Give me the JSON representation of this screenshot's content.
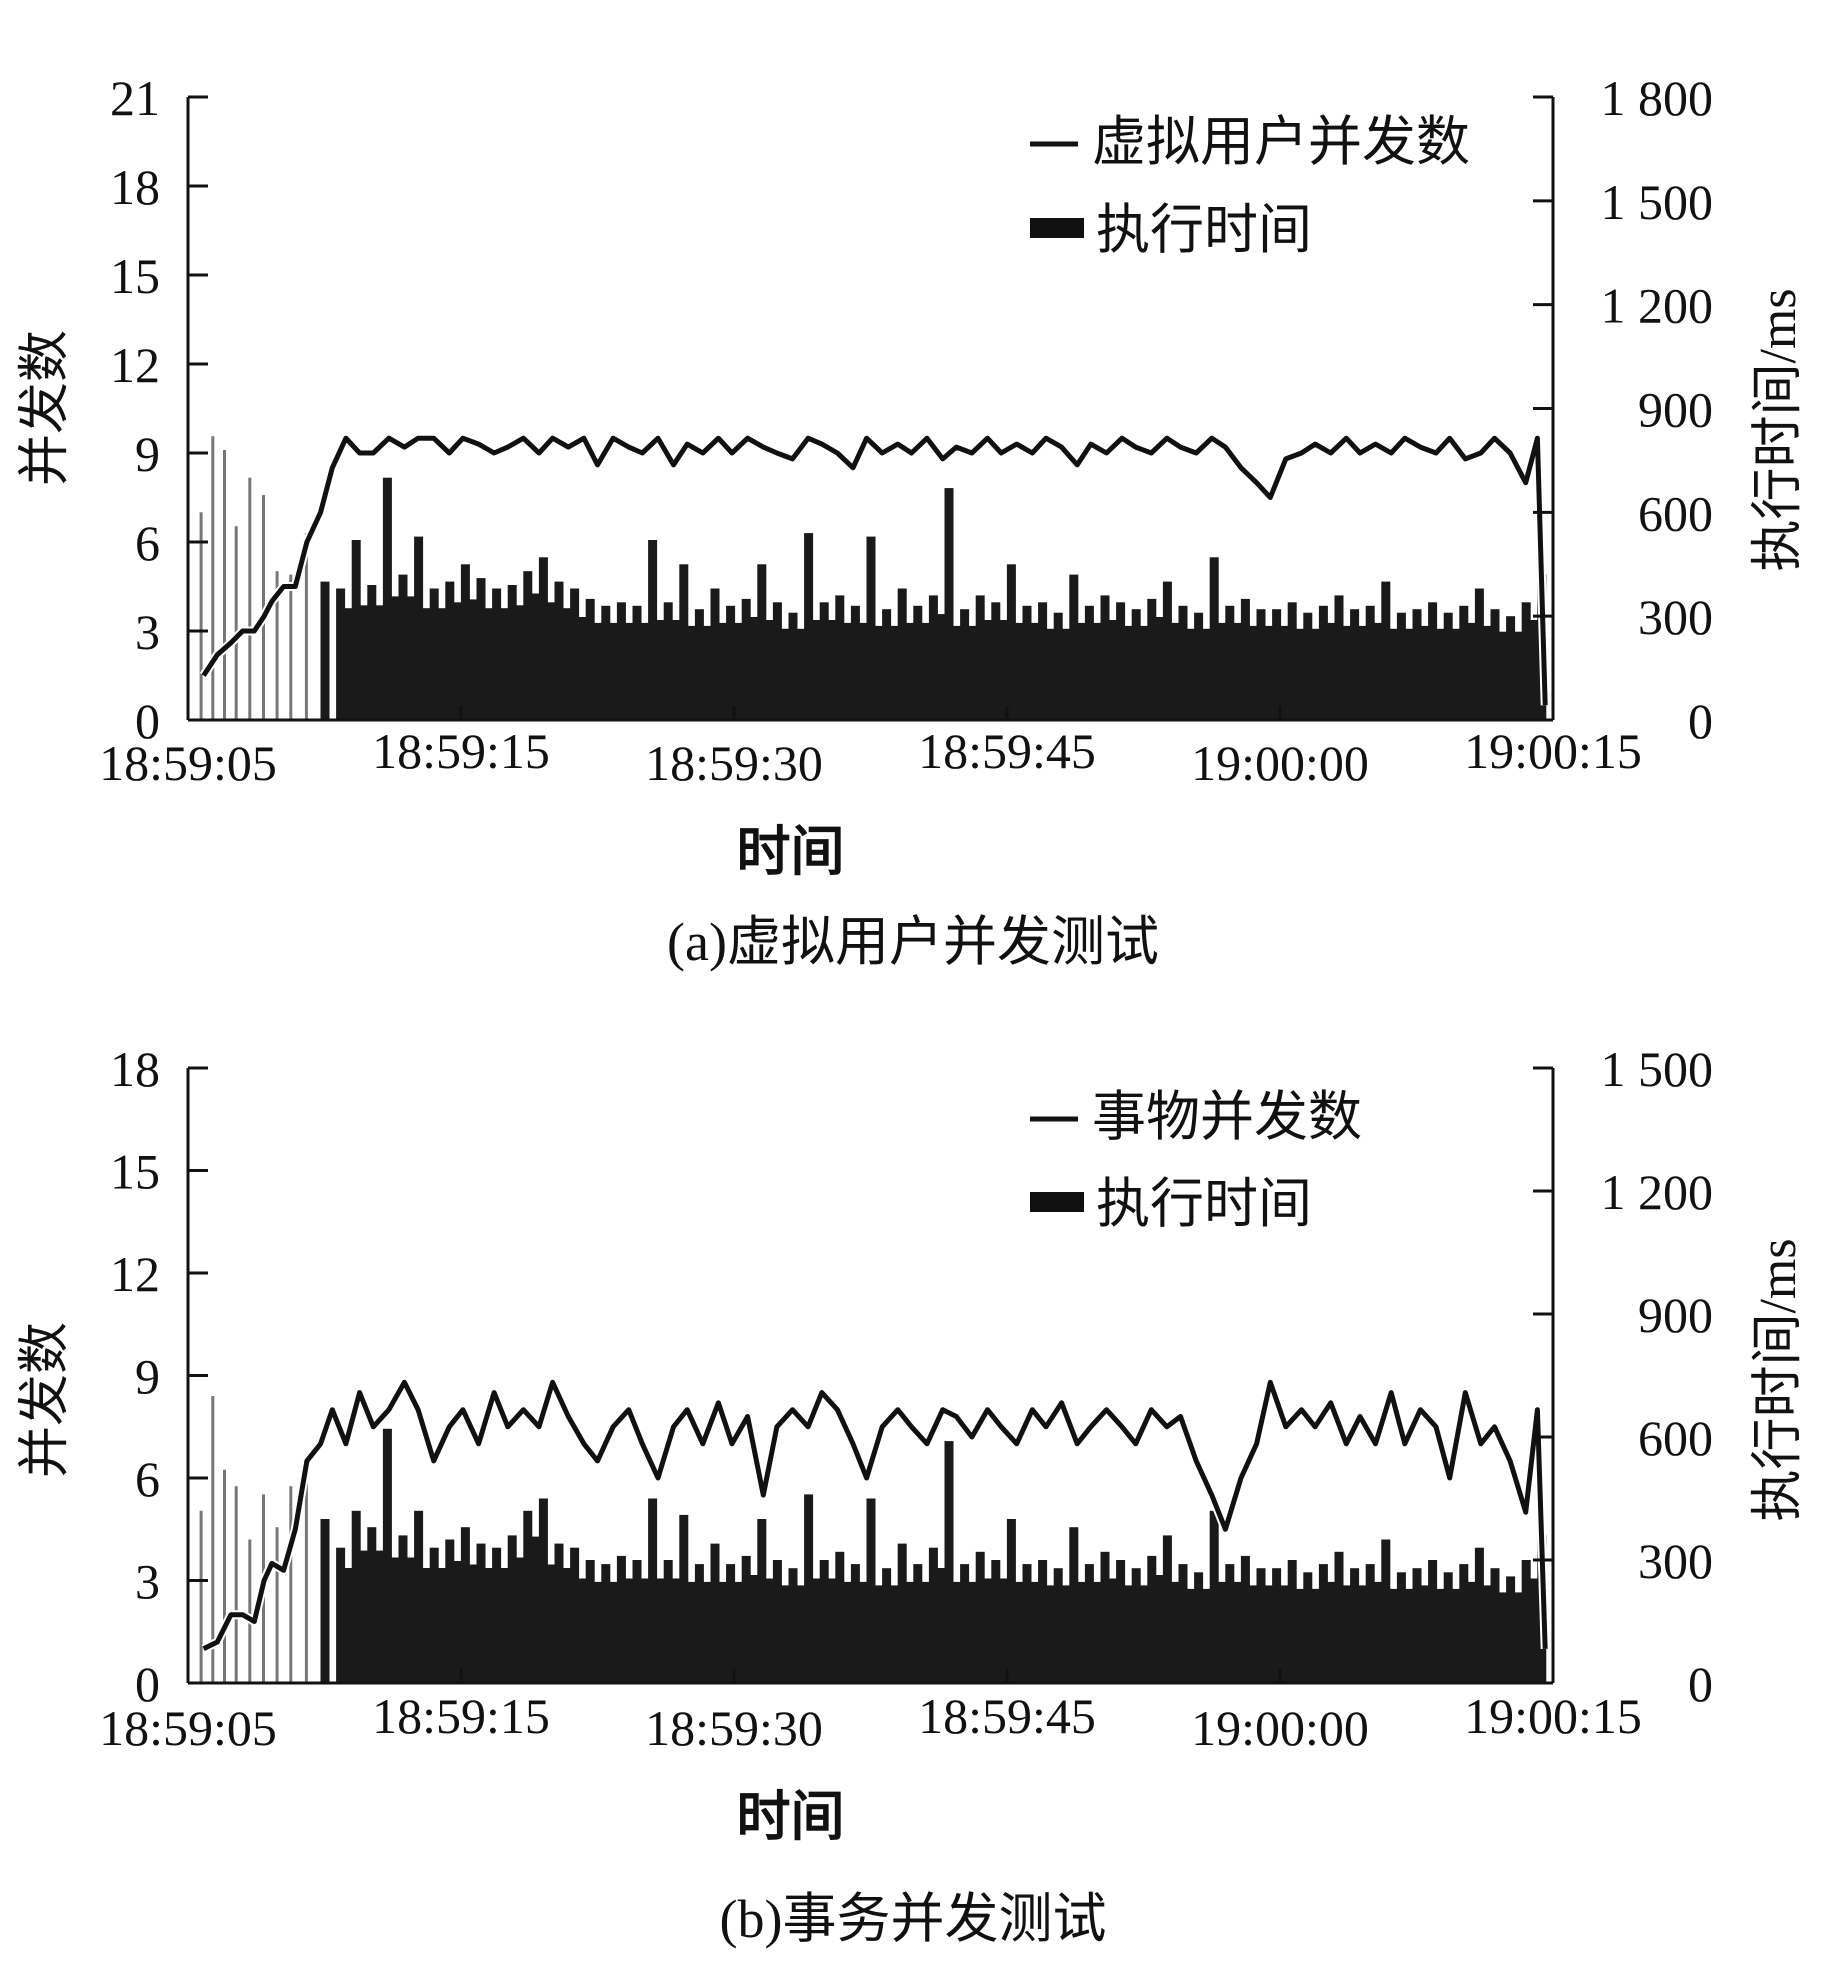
{
  "chart_data": [
    {
      "type": "line",
      "caption": "(a)虚拟用户并发测试",
      "xlabel": "时间",
      "ylabel_left": "并发数",
      "ylabel_right": "执行时间/ms",
      "x_ticks": [
        "18:59:05",
        "18:59:15",
        "18:59:30",
        "18:59:45",
        "19:00:00",
        "19:00:15"
      ],
      "y_left_ticks": [
        "0",
        "3",
        "6",
        "9",
        "12",
        "15",
        "18",
        "21"
      ],
      "y_left_range": [
        0,
        21
      ],
      "y_right_ticks": [
        "0",
        "300",
        "600",
        "900",
        "1 200",
        "1 500",
        "1 800"
      ],
      "y_right_range": [
        0,
        1800
      ],
      "x_range_seconds_after_185905": [
        0,
        70
      ],
      "legend_position": "top-right",
      "colors": {
        "line": "#111111",
        "bars": "#1a1a1a",
        "early_bars": "#777777"
      },
      "series": [
        {
          "name": "虚拟用户并发数",
          "kind": "line",
          "axis": "left",
          "x": [
            0.8,
            1.5,
            2.2,
            2.8,
            3.4,
            3.9,
            4.3,
            4.9,
            5.5,
            6.1,
            6.8,
            7.4,
            8.1,
            8.8,
            9.5,
            10.3,
            11.1,
            11.8,
            12.6,
            13.4,
            14.1,
            14.9,
            15.7,
            16.4,
            17.2,
            18.0,
            18.7,
            19.5,
            20.3,
            21.0,
            21.8,
            22.6,
            23.3,
            24.1,
            24.9,
            25.6,
            26.4,
            27.2,
            27.9,
            28.7,
            29.5,
            30.2,
            31.0,
            31.8,
            32.5,
            33.3,
            34.1,
            34.8,
            35.6,
            36.4,
            37.1,
            37.9,
            38.7,
            39.4,
            40.2,
            41.0,
            41.7,
            42.5,
            43.3,
            44.0,
            44.8,
            45.6,
            46.3,
            47.1,
            47.9,
            48.6,
            49.4,
            50.2,
            50.9,
            51.7,
            52.5,
            53.2,
            54.0,
            54.8,
            55.5,
            56.3,
            57.1,
            57.8,
            58.6,
            59.4,
            60.1,
            60.9,
            61.7,
            62.4,
            63.2,
            64.0,
            64.7,
            65.5,
            66.3,
            67.0,
            67.8,
            68.6,
            69.2,
            69.6
          ],
          "y": [
            1.5,
            2.2,
            2.6,
            3.0,
            3.0,
            3.5,
            4.0,
            4.5,
            4.5,
            6.0,
            7.0,
            8.5,
            9.5,
            9.0,
            9.0,
            9.5,
            9.2,
            9.5,
            9.5,
            9.0,
            9.5,
            9.3,
            9.0,
            9.2,
            9.5,
            9.0,
            9.5,
            9.2,
            9.5,
            8.6,
            9.5,
            9.2,
            9.0,
            9.5,
            8.6,
            9.3,
            9.0,
            9.5,
            9.0,
            9.5,
            9.2,
            9.0,
            8.8,
            9.5,
            9.3,
            9.0,
            8.5,
            9.5,
            9.0,
            9.3,
            9.0,
            9.5,
            8.8,
            9.2,
            9.0,
            9.5,
            9.0,
            9.3,
            9.0,
            9.5,
            9.2,
            8.6,
            9.3,
            9.0,
            9.5,
            9.2,
            9.0,
            9.5,
            9.2,
            9.0,
            9.5,
            9.2,
            8.5,
            8.0,
            7.5,
            8.8,
            9.0,
            9.3,
            9.0,
            9.5,
            9.0,
            9.3,
            9.0,
            9.5,
            9.2,
            9.0,
            9.5,
            8.8,
            9.0,
            9.5,
            9.0,
            8.0,
            9.5,
            0.5
          ]
        },
        {
          "name": "执行时间",
          "kind": "bar",
          "axis": "right",
          "x": [
            0.8,
            1.4,
            2.0,
            2.6,
            3.3,
            4.0,
            4.7,
            5.4,
            6.2,
            7.0,
            7.8,
            8.6,
            9.4,
            10.2,
            11.0,
            11.8,
            12.6,
            13.4,
            14.2,
            15.0,
            15.8,
            16.6,
            17.4,
            18.2,
            19.0,
            19.8,
            20.6,
            21.4,
            22.2,
            23.0,
            23.8,
            24.6,
            25.4,
            26.2,
            27.0,
            27.8,
            28.6,
            29.4,
            30.2,
            31.0,
            31.8,
            32.6,
            33.4,
            34.2,
            35.0,
            35.8,
            36.6,
            37.4,
            38.2,
            39.0,
            39.8,
            40.6,
            41.4,
            42.2,
            43.0,
            43.8,
            44.6,
            45.4,
            46.2,
            47.0,
            47.8,
            48.6,
            49.4,
            50.2,
            51.0,
            51.8,
            52.6,
            53.4,
            54.2,
            55.0,
            55.8,
            56.6,
            57.4,
            58.2,
            59.0,
            59.8,
            60.6,
            61.4,
            62.2,
            63.0,
            63.8,
            64.6,
            65.4,
            66.2,
            67.0,
            67.8,
            68.6,
            69.4
          ],
          "y": [
            600,
            820,
            780,
            560,
            700,
            650,
            430,
            420,
            540,
            400,
            380,
            520,
            390,
            700,
            420,
            530,
            380,
            400,
            450,
            410,
            380,
            390,
            430,
            470,
            400,
            380,
            350,
            330,
            340,
            330,
            520,
            340,
            450,
            320,
            380,
            330,
            350,
            450,
            340,
            310,
            540,
            340,
            360,
            330,
            530,
            320,
            380,
            330,
            360,
            670,
            320,
            360,
            340,
            450,
            330,
            340,
            310,
            420,
            330,
            360,
            340,
            320,
            350,
            400,
            330,
            310,
            470,
            330,
            350,
            320,
            320,
            340,
            310,
            330,
            360,
            320,
            330,
            400,
            310,
            320,
            340,
            310,
            330,
            380,
            320,
            300,
            340,
            420
          ]
        }
      ]
    },
    {
      "type": "line",
      "caption": "(b)事务并发测试",
      "xlabel": "时间",
      "ylabel_left": "并发数",
      "ylabel_right": "执行时间/ms",
      "x_ticks": [
        "18:59:05",
        "18:59:15",
        "18:59:30",
        "18:59:45",
        "19:00:00",
        "19:00:15"
      ],
      "y_left_ticks": [
        "0",
        "3",
        "6",
        "9",
        "12",
        "15",
        "18"
      ],
      "y_left_range": [
        0,
        18
      ],
      "y_right_ticks": [
        "0",
        "300",
        "600",
        "900",
        "1 200",
        "1 500"
      ],
      "y_right_range": [
        0,
        1500
      ],
      "x_range_seconds_after_185905": [
        0,
        70
      ],
      "legend_position": "top-right",
      "colors": {
        "line": "#111111",
        "bars": "#1a1a1a",
        "early_bars": "#777777"
      },
      "series": [
        {
          "name": "事物并发数",
          "kind": "line",
          "axis": "left",
          "x": [
            0.8,
            1.5,
            2.2,
            2.8,
            3.4,
            3.9,
            4.3,
            4.9,
            5.5,
            6.1,
            6.8,
            7.4,
            8.1,
            8.8,
            9.5,
            10.3,
            11.1,
            11.8,
            12.6,
            13.4,
            14.1,
            14.9,
            15.7,
            16.4,
            17.2,
            18.0,
            18.7,
            19.5,
            20.3,
            21.0,
            21.8,
            22.6,
            23.3,
            24.1,
            24.9,
            25.6,
            26.4,
            27.2,
            27.9,
            28.7,
            29.5,
            30.2,
            31.0,
            31.8,
            32.5,
            33.3,
            34.1,
            34.8,
            35.6,
            36.4,
            37.1,
            37.9,
            38.7,
            39.4,
            40.2,
            41.0,
            41.7,
            42.5,
            43.3,
            44.0,
            44.8,
            45.6,
            46.3,
            47.1,
            47.9,
            48.6,
            49.4,
            50.2,
            50.9,
            51.7,
            52.5,
            53.2,
            54.0,
            54.8,
            55.5,
            56.3,
            57.1,
            57.8,
            58.6,
            59.4,
            60.1,
            60.9,
            61.7,
            62.4,
            63.2,
            64.0,
            64.7,
            65.5,
            66.3,
            67.0,
            67.8,
            68.6,
            69.2,
            69.6
          ],
          "y": [
            1.0,
            1.2,
            2.0,
            2.0,
            1.8,
            3.0,
            3.5,
            3.3,
            4.5,
            6.5,
            7.0,
            8.0,
            7.0,
            8.5,
            7.5,
            8.0,
            8.8,
            8.0,
            6.5,
            7.5,
            8.0,
            7.0,
            8.5,
            7.5,
            8.0,
            7.5,
            8.8,
            7.8,
            7.0,
            6.5,
            7.5,
            8.0,
            7.0,
            6.0,
            7.5,
            8.0,
            7.0,
            8.2,
            7.0,
            7.8,
            5.5,
            7.5,
            8.0,
            7.5,
            8.5,
            8.0,
            7.0,
            6.0,
            7.5,
            8.0,
            7.5,
            7.0,
            8.0,
            7.8,
            7.2,
            8.0,
            7.5,
            7.0,
            8.0,
            7.5,
            8.2,
            7.0,
            7.5,
            8.0,
            7.5,
            7.0,
            8.0,
            7.5,
            7.8,
            6.5,
            5.5,
            4.5,
            6.0,
            7.0,
            8.8,
            7.5,
            8.0,
            7.5,
            8.2,
            7.0,
            7.8,
            7.0,
            8.5,
            7.0,
            8.0,
            7.5,
            6.0,
            8.5,
            7.0,
            7.5,
            6.5,
            5.0,
            8.0,
            1.0
          ]
        },
        {
          "name": "执行时间",
          "kind": "bar",
          "axis": "right",
          "x": [
            0.8,
            1.4,
            2.0,
            2.6,
            3.3,
            4.0,
            4.7,
            5.4,
            6.2,
            7.0,
            7.8,
            8.6,
            9.4,
            10.2,
            11.0,
            11.8,
            12.6,
            13.4,
            14.2,
            15.0,
            15.8,
            16.6,
            17.4,
            18.2,
            19.0,
            19.8,
            20.6,
            21.4,
            22.2,
            23.0,
            23.8,
            24.6,
            25.4,
            26.2,
            27.0,
            27.8,
            28.6,
            29.4,
            30.2,
            31.0,
            31.8,
            32.6,
            33.4,
            34.2,
            35.0,
            35.8,
            36.6,
            37.4,
            38.2,
            39.0,
            39.8,
            40.6,
            41.4,
            42.2,
            43.0,
            43.8,
            44.6,
            45.4,
            46.2,
            47.0,
            47.8,
            48.6,
            49.4,
            50.2,
            51.0,
            51.8,
            52.6,
            53.4,
            54.2,
            55.0,
            55.8,
            56.6,
            57.4,
            58.2,
            59.0,
            59.8,
            60.6,
            61.4,
            62.2,
            63.0,
            63.8,
            64.6,
            65.4,
            66.2,
            67.0,
            67.8,
            68.6,
            69.4
          ],
          "y": [
            420,
            700,
            520,
            480,
            350,
            460,
            380,
            480,
            500,
            400,
            330,
            420,
            380,
            620,
            360,
            420,
            330,
            350,
            380,
            340,
            330,
            360,
            420,
            450,
            340,
            330,
            300,
            290,
            310,
            300,
            450,
            300,
            410,
            290,
            340,
            290,
            310,
            400,
            300,
            280,
            460,
            300,
            320,
            290,
            450,
            280,
            340,
            290,
            330,
            590,
            290,
            320,
            300,
            400,
            290,
            300,
            280,
            380,
            290,
            320,
            300,
            280,
            310,
            360,
            290,
            270,
            420,
            290,
            310,
            280,
            280,
            300,
            270,
            290,
            320,
            280,
            290,
            350,
            270,
            280,
            300,
            270,
            290,
            330,
            280,
            260,
            300,
            360
          ]
        }
      ]
    }
  ]
}
